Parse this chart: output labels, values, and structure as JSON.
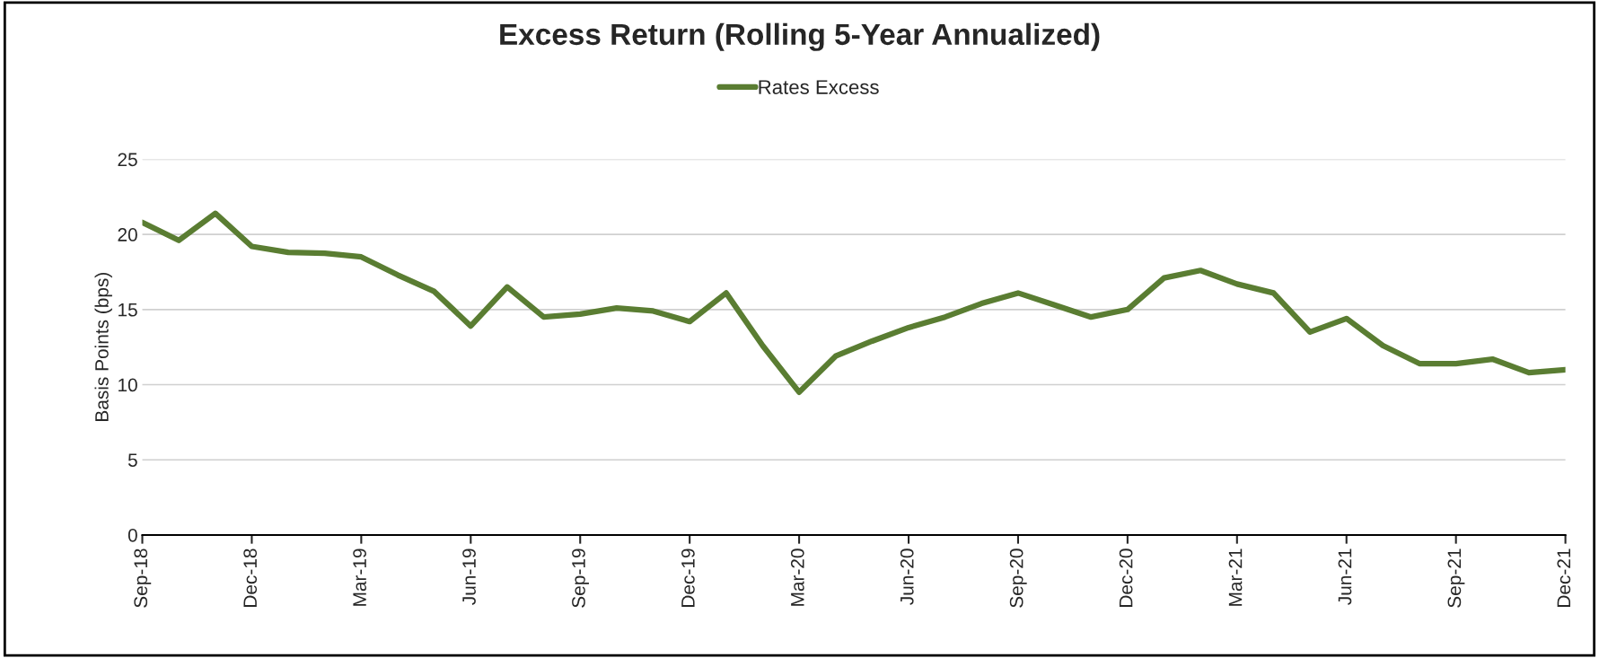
{
  "chart_data": {
    "type": "line",
    "title": "Excess Return (Rolling 5-Year Annualized)",
    "ylabel": "Basis Points (bps)",
    "categories": [
      "Sep-18",
      null,
      null,
      "Dec-18",
      null,
      null,
      "Mar-19",
      null,
      null,
      "Jun-19",
      null,
      null,
      "Sep-19",
      null,
      null,
      "Dec-19",
      null,
      null,
      "Mar-20",
      null,
      null,
      "Jun-20",
      null,
      null,
      "Sep-20",
      null,
      null,
      "Dec-20",
      null,
      null,
      "Mar-21",
      null,
      null,
      "Jun-21",
      null,
      null,
      "Sep-21",
      null,
      null,
      "Dec-21"
    ],
    "series": [
      {
        "name": "Rates Excess",
        "color": "#5a7d32",
        "values": [
          20.8,
          19.6,
          21.4,
          19.2,
          18.8,
          18.75,
          18.5,
          17.3,
          16.2,
          13.9,
          16.5,
          14.5,
          14.7,
          15.1,
          14.9,
          14.2,
          16.1,
          12.6,
          9.5,
          11.9,
          12.9,
          13.8,
          14.5,
          15.4,
          16.1,
          15.3,
          14.5,
          15.0,
          17.1,
          17.6,
          16.7,
          16.1,
          13.5,
          14.4,
          12.6,
          11.4,
          11.4,
          11.7,
          10.8,
          11.0
        ]
      }
    ],
    "ylim": [
      0,
      25
    ],
    "yticks": [
      0,
      5,
      10,
      15,
      20,
      25
    ],
    "grid": "y",
    "legend": "top",
    "marker": "none",
    "line_style": "solid"
  }
}
